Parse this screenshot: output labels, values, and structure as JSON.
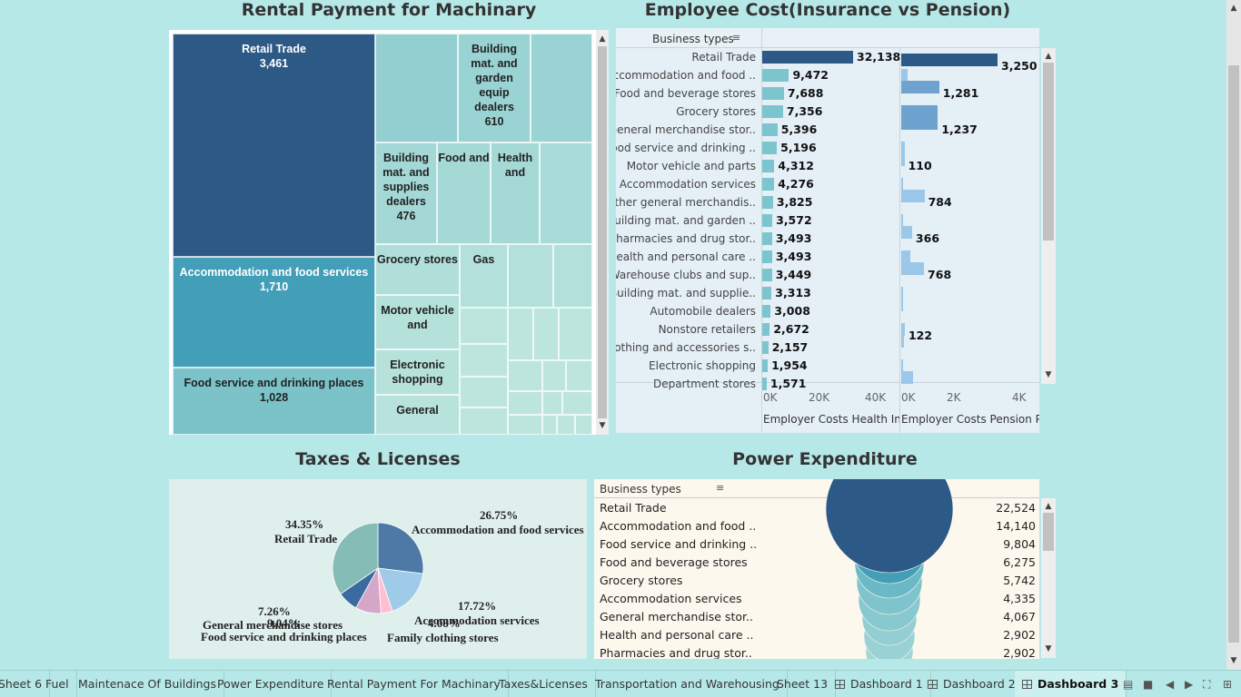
{
  "titles": {
    "rental": "Rental Payment  for Machinary",
    "employee": "Employee Cost(Insurance vs Pension)",
    "taxes": "Taxes & Licenses",
    "power": "Power Expenditure"
  },
  "treemap": {
    "cells": [
      {
        "label": "Retail Trade",
        "value": "3,461",
        "color": "#2c5985",
        "dark": true
      },
      {
        "label": "Accommodation and food services",
        "value": "1,710",
        "color": "#439fb8",
        "dark": true
      },
      {
        "label": "Food service and drinking places",
        "value": "1,028",
        "color": "#7bc3c9",
        "dark": false
      },
      {
        "label": "",
        "value": "",
        "color": "#93cfd0",
        "dark": false
      },
      {
        "label": "Building mat. and garden equip dealers",
        "value": "610",
        "color": "#9ad3d3",
        "dark": false
      },
      {
        "label": "",
        "value": "",
        "color": "#9ad3d3",
        "dark": false
      },
      {
        "label": "Building mat. and supplies dealers",
        "value": "476",
        "color": "#a3d8d6",
        "dark": false
      },
      {
        "label": "Food and",
        "value": "",
        "color": "#a5d9d6",
        "dark": false
      },
      {
        "label": "Health and",
        "value": "",
        "color": "#a5d9d6",
        "dark": false
      },
      {
        "label": "",
        "value": "",
        "color": "#a8dbd8",
        "dark": false
      },
      {
        "label": "Grocery stores",
        "value": "",
        "color": "#b0dfd9",
        "dark": false
      },
      {
        "label": "Gas",
        "value": "",
        "color": "#b3e0da",
        "dark": false
      },
      {
        "label": "",
        "value": "",
        "color": "#b3e0da",
        "dark": false
      },
      {
        "label": "",
        "value": "",
        "color": "#b3e0da",
        "dark": false
      },
      {
        "label": "Motor vehicle and",
        "value": "",
        "color": "#b5e1db",
        "dark": false
      },
      {
        "label": "Electronic shopping",
        "value": "",
        "color": "#b6e2db",
        "dark": false
      },
      {
        "label": "General",
        "value": "",
        "color": "#b8e3dc",
        "dark": false
      }
    ]
  },
  "employee": {
    "header": "Business types",
    "rows": [
      {
        "label": "Retail Trade",
        "health": 32138,
        "health_text": "32,138",
        "pension": 3250,
        "pension_text": "3,250"
      },
      {
        "label": "Accommodation and food ..",
        "health": 9472,
        "health_text": "9,472",
        "pension": 220,
        "pension_text": ""
      },
      {
        "label": "Food and beverage stores",
        "health": 7688,
        "health_text": "7,688",
        "pension": 1281,
        "pension_text": "1,281"
      },
      {
        "label": "Grocery stores",
        "health": 7356,
        "health_text": "7,356",
        "pension": 1237,
        "pension_text": ""
      },
      {
        "label": "General merchandise stor..",
        "health": 5396,
        "health_text": "5,396",
        "pension": 1237,
        "pension_text": "1,237"
      },
      {
        "label": "Food service and drinking ..",
        "health": 5196,
        "health_text": "5,196",
        "pension": 110,
        "pension_text": ""
      },
      {
        "label": "Motor vehicle and parts",
        "health": 4312,
        "health_text": "4,312",
        "pension": 110,
        "pension_text": "110"
      },
      {
        "label": "Accommodation services",
        "health": 4276,
        "health_text": "4,276",
        "pension": 70,
        "pension_text": ""
      },
      {
        "label": "Other general merchandis..",
        "health": 3825,
        "health_text": "3,825",
        "pension": 784,
        "pension_text": "784"
      },
      {
        "label": "Building mat. and garden ..",
        "health": 3572,
        "health_text": "3,572",
        "pension": 40,
        "pension_text": ""
      },
      {
        "label": "Pharmacies and drug stor..",
        "health": 3493,
        "health_text": "3,493",
        "pension": 366,
        "pension_text": "366"
      },
      {
        "label": "Health and personal care ..",
        "health": 3493,
        "health_text": "3,493",
        "pension": 300,
        "pension_text": ""
      },
      {
        "label": "Warehouse clubs and sup..",
        "health": 3449,
        "health_text": "3,449",
        "pension": 768,
        "pension_text": "768"
      },
      {
        "label": "Building mat. and supplie..",
        "health": 3313,
        "health_text": "3,313",
        "pension": 20,
        "pension_text": ""
      },
      {
        "label": "Automobile dealers",
        "health": 3008,
        "health_text": "3,008",
        "pension": 20,
        "pension_text": ""
      },
      {
        "label": "Nonstore retailers",
        "health": 2672,
        "health_text": "2,672",
        "pension": 122,
        "pension_text": "122"
      },
      {
        "label": "Clothing and accessories s..",
        "health": 2157,
        "health_text": "2,157",
        "pension": 80,
        "pension_text": ""
      },
      {
        "label": "Electronic shopping",
        "health": 1954,
        "health_text": "1,954",
        "pension": 30,
        "pension_text": ""
      },
      {
        "label": "Department stores",
        "health": 1571,
        "health_text": "1,571",
        "pension": 400,
        "pension_text": ""
      }
    ],
    "health_axis": {
      "ticks": [
        "0K",
        "20K",
        "40K"
      ],
      "title": "Employer Costs Health In.."
    },
    "pension_axis": {
      "ticks": [
        "0K",
        "2K",
        "4K"
      ],
      "title": "Employer Costs Pension P.."
    },
    "health_color": "#2c5985",
    "pension_color": "#7fb2d9"
  },
  "taxes": {
    "slices": [
      {
        "label": "Accommodation and food services",
        "pct": "26.75%",
        "value": 26.75,
        "color": "#4e79a7"
      },
      {
        "label": "Accommodation services",
        "pct": "17.72%",
        "value": 17.72,
        "color": "#a0cbe8"
      },
      {
        "label": "Family clothing stores",
        "pct": "4.08%",
        "value": 4.08,
        "color": "#ffbed2"
      },
      {
        "label": "Food service and drinking places",
        "pct": "9.04%",
        "value": 9.04,
        "color": "#d4a6c8"
      },
      {
        "label": "General merchandise stores",
        "pct": "7.26%",
        "value": 7.26,
        "color": "#3b6aa0"
      },
      {
        "label": "Retail Trade",
        "pct": "34.35%",
        "value": 34.35,
        "color": "#86bcb6"
      }
    ]
  },
  "power": {
    "header": "Business types",
    "rows": [
      {
        "label": "Retail Trade",
        "value": "22,524"
      },
      {
        "label": "Accommodation and food ..",
        "value": "14,140"
      },
      {
        "label": "Food service and drinking ..",
        "value": "9,804"
      },
      {
        "label": "Food and beverage stores",
        "value": "6,275"
      },
      {
        "label": "Grocery stores",
        "value": "5,742"
      },
      {
        "label": "Accommodation services",
        "value": "4,335"
      },
      {
        "label": "General merchandise stor..",
        "value": "4,067"
      },
      {
        "label": "Health and personal care ..",
        "value": "2,902"
      },
      {
        "label": "Pharmacies and drug stor..",
        "value": "2,902"
      }
    ],
    "colors": [
      "#2c5985",
      "#439fb8",
      "#6bb8c6",
      "#7fc4cc",
      "#88c9cf",
      "#92ced2",
      "#98d2d4",
      "#9fd6d6",
      "#a6d9d8"
    ]
  },
  "tabs": [
    {
      "label": "Sheet 6",
      "dashboard": false,
      "active": false
    },
    {
      "label": "Fuel",
      "dashboard": false,
      "active": false
    },
    {
      "label": "Maintenace Of Buildings",
      "dashboard": false,
      "active": false
    },
    {
      "label": "Power Expenditure",
      "dashboard": false,
      "active": false
    },
    {
      "label": "Rental Payment For Machinary",
      "dashboard": false,
      "active": false
    },
    {
      "label": "Taxes&Licenses",
      "dashboard": false,
      "active": false
    },
    {
      "label": "Transportation and Warehousing",
      "dashboard": false,
      "active": false
    },
    {
      "label": "Sheet 13",
      "dashboard": false,
      "active": false
    },
    {
      "label": "Dashboard 1",
      "dashboard": true,
      "active": false
    },
    {
      "label": "Dashboard 2",
      "dashboard": true,
      "active": false
    },
    {
      "label": "Dashboard 3",
      "dashboard": true,
      "active": true
    }
  ]
}
